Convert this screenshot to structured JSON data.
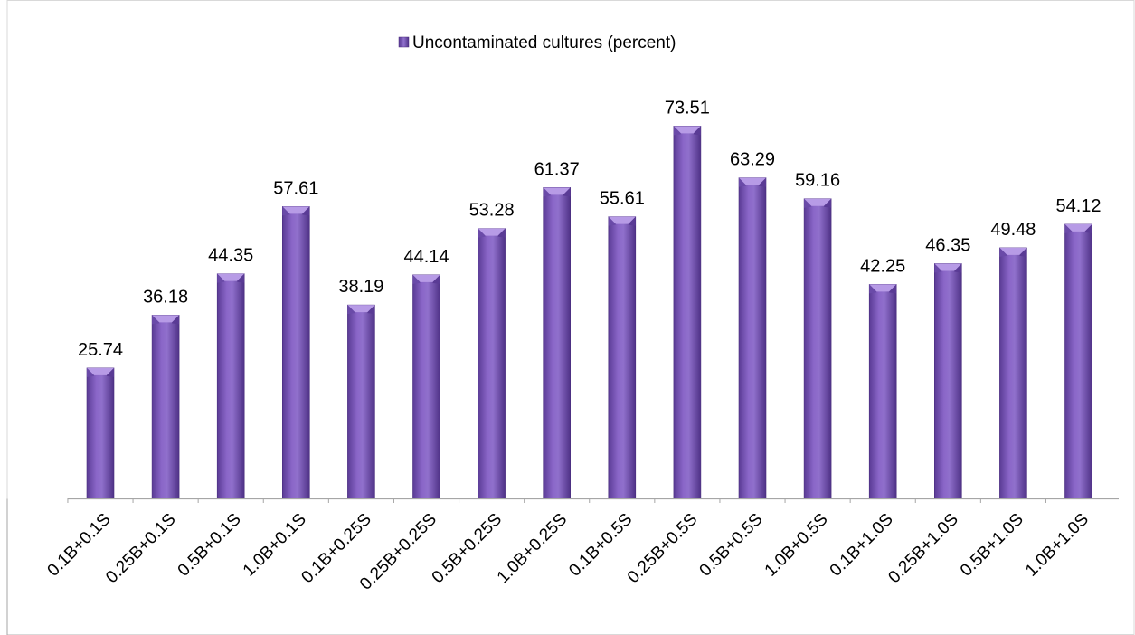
{
  "chart_data": {
    "type": "bar",
    "categories": [
      "0.1B+0.1S",
      "0.25B+0.1S",
      "0.5B+0.1S",
      "1.0B+0.1S",
      "0.1B+0.25S",
      "0.25B+0.25S",
      "0.5B+0.25S",
      "1.0B+0.25S",
      "0.1B+0.5S",
      "0.25B+0.5S",
      "0.5B+0.5S",
      "1.0B+0.5S",
      "0.1B+1.0S",
      "0.25B+1.0S",
      "0.5B+1.0S",
      "1.0B+1.0S"
    ],
    "series": [
      {
        "name": "Uncontaminated cultures (percent)",
        "values": [
          25.74,
          36.18,
          44.35,
          57.61,
          38.19,
          44.14,
          53.28,
          61.37,
          55.61,
          73.51,
          63.29,
          59.16,
          42.25,
          46.35,
          49.48,
          54.12
        ]
      }
    ],
    "value_labels": [
      "25.74",
      "36.18",
      "44.35",
      "57.61",
      "38.19",
      "44.14",
      "53.28",
      "61.37",
      "55.61",
      "73.51",
      "63.29",
      "59.16",
      "42.25",
      "46.35",
      "49.48",
      "54.12"
    ],
    "ylim": [
      0,
      80
    ],
    "grid": false,
    "legend_position": "top-center",
    "colors": {
      "bar": "#7f5bbf",
      "bar_dark": "#4a2d7e",
      "bar_light": "#a98ae0",
      "axis": "#a6a6a6",
      "text": "#000000"
    }
  }
}
